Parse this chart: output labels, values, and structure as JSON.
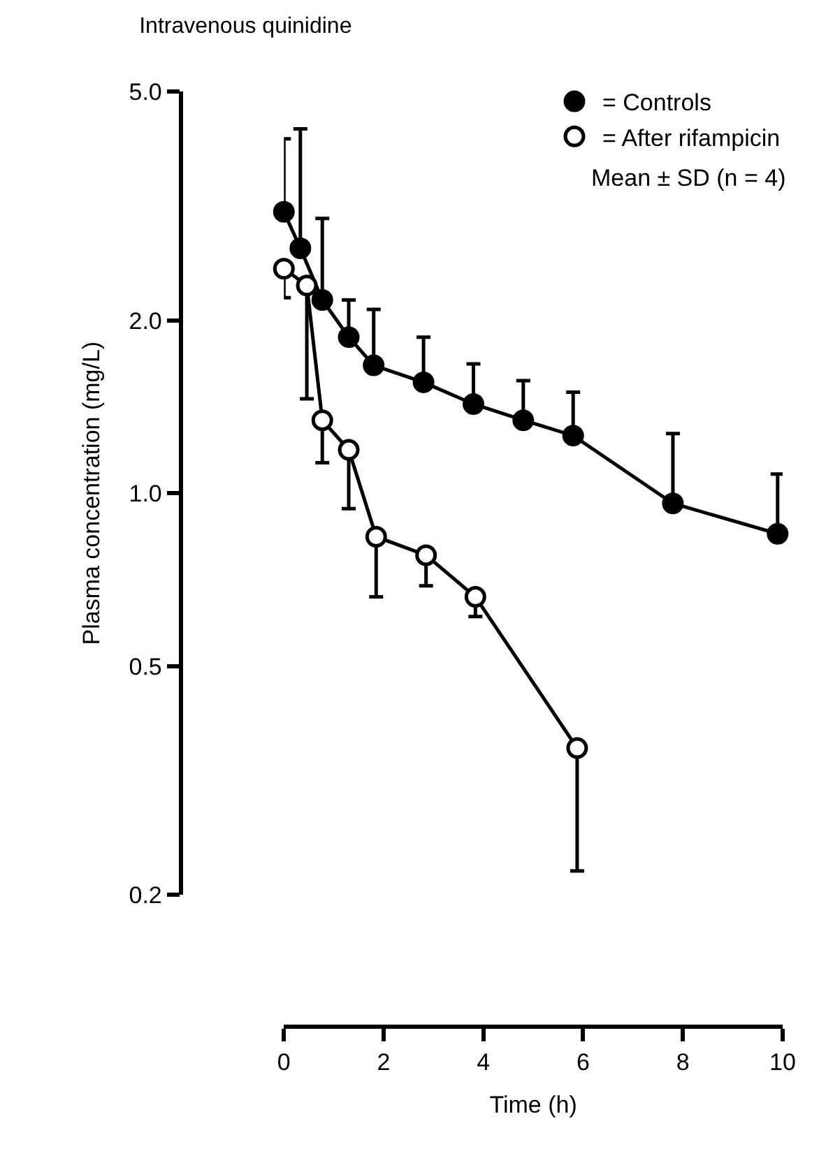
{
  "chart_data": {
    "type": "line",
    "title": "Intravenous quinidine",
    "xlabel": "Time (h)",
    "ylabel": "Plasma concentration (mg/L)",
    "log": "y",
    "legend": "top right",
    "marker": "circle",
    "line_style": "solid",
    "xlim": [
      0,
      10
    ],
    "xticks": [
      0,
      2,
      4,
      6,
      8,
      10
    ],
    "ylim": [
      0.2,
      5.0
    ],
    "yticks": [
      {
        "value": 5,
        "label": "5.0"
      },
      {
        "value": 2,
        "label": "2.0"
      },
      {
        "value": 1,
        "label": "1.0"
      },
      {
        "value": 0.5,
        "label": "0.5"
      },
      {
        "value": 0.2,
        "label": "0.2"
      }
    ],
    "annotations": [
      "Mean ± SD (n = 4)"
    ],
    "series": [
      {
        "name": "= Controls",
        "color": "#000000",
        "x": [
          0,
          0.33,
          0.77,
          1.3,
          1.8,
          2.8,
          3.8,
          4.8,
          5.8,
          7.8,
          9.9
        ],
        "values": [
          3.09,
          2.67,
          2.17,
          1.87,
          1.67,
          1.56,
          1.43,
          1.34,
          1.26,
          0.96,
          0.85
        ],
        "errors": [
          [
            3.09,
            4.14
          ],
          [
            2.67,
            4.31
          ],
          [
            2.17,
            3.01
          ],
          [
            1.87,
            2.17
          ],
          [
            1.67,
            2.09
          ],
          [
            1.56,
            1.87
          ],
          [
            1.43,
            1.68
          ],
          [
            1.34,
            1.57
          ],
          [
            1.26,
            1.5
          ],
          [
            0.96,
            1.27
          ],
          [
            0.85,
            1.08
          ]
        ]
      },
      {
        "name": "= After rifampicin",
        "color": "#ffffff",
        "x": [
          0,
          0.46,
          0.77,
          1.3,
          1.85,
          2.85,
          3.84,
          5.88
        ],
        "values": [
          2.46,
          2.3,
          1.34,
          1.19,
          0.84,
          0.78,
          0.66,
          0.36
        ],
        "errors": [
          [
            2.19,
            2.46
          ],
          [
            1.46,
            2.3
          ],
          [
            1.13,
            1.34
          ],
          [
            0.94,
            1.19
          ],
          [
            0.66,
            0.84
          ],
          [
            0.69,
            0.78
          ],
          [
            0.61,
            0.66
          ],
          [
            0.22,
            0.36
          ]
        ]
      }
    ]
  }
}
